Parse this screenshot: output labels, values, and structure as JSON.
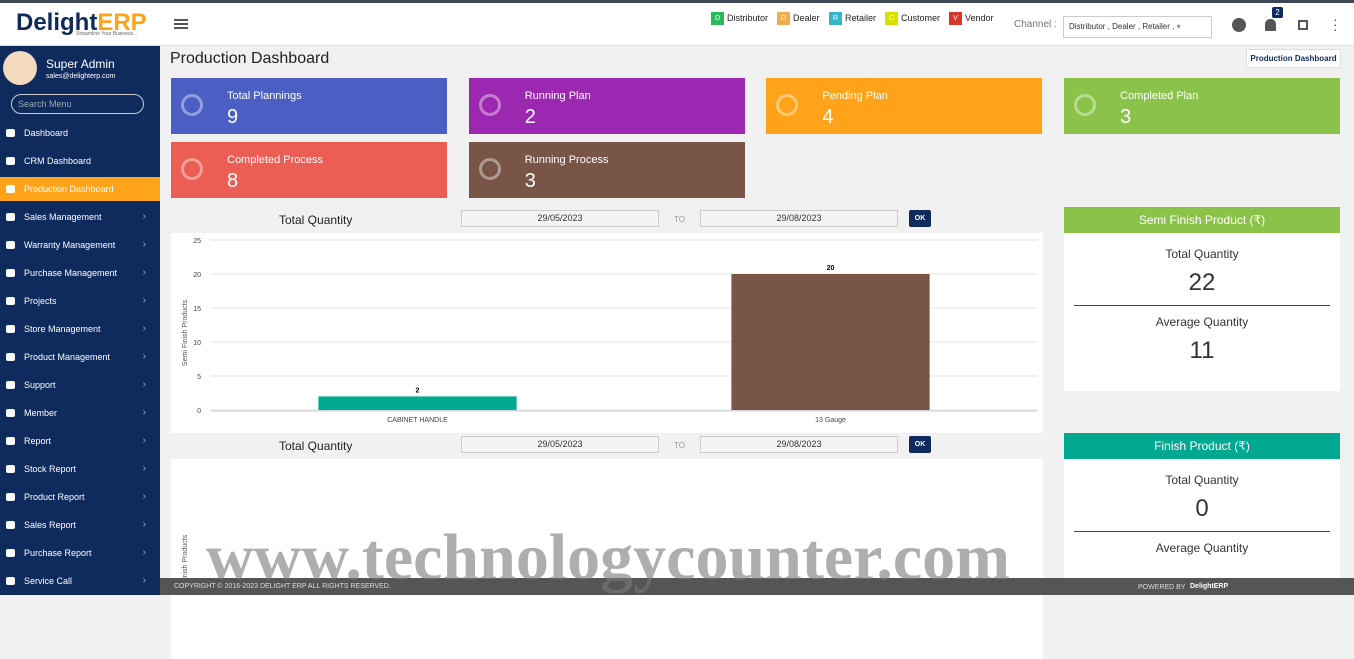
{
  "brand": {
    "name": "Delight",
    "suffix": "ERP",
    "tagline": "Streamline Your Business..."
  },
  "user": {
    "name": "Super Admin",
    "email": "sales@delighterp.com"
  },
  "search_placeholder": "Search Menu",
  "menu": [
    {
      "label": "Dashboard",
      "submenu": false
    },
    {
      "label": "CRM Dashboard",
      "submenu": false
    },
    {
      "label": "Production Dashboard",
      "submenu": false,
      "active": true
    },
    {
      "label": "Sales Management",
      "submenu": true
    },
    {
      "label": "Warranty Management",
      "submenu": true
    },
    {
      "label": "Purchase Management",
      "submenu": true
    },
    {
      "label": "Projects",
      "submenu": true
    },
    {
      "label": "Store Management",
      "submenu": true
    },
    {
      "label": "Product Management",
      "submenu": true
    },
    {
      "label": "Support",
      "submenu": true
    },
    {
      "label": "Member",
      "submenu": true
    },
    {
      "label": "Report",
      "submenu": true
    },
    {
      "label": "Stock Report",
      "submenu": true
    },
    {
      "label": "Product Report",
      "submenu": true
    },
    {
      "label": "Sales Report",
      "submenu": true
    },
    {
      "label": "Purchase Report",
      "submenu": true
    },
    {
      "label": "Service Call",
      "submenu": true
    }
  ],
  "channel_legend": [
    {
      "letter": "D",
      "label": "Distributor",
      "color": "#2eb85c"
    },
    {
      "letter": "D",
      "label": "Dealer",
      "color": "#f0ad4e"
    },
    {
      "letter": "R",
      "label": "Retailer",
      "color": "#39b3c7"
    },
    {
      "letter": "C",
      "label": "Customer",
      "color": "#d7e000"
    },
    {
      "letter": "V",
      "label": "Vendor",
      "color": "#d9362b"
    }
  ],
  "channel": {
    "label": "Channel :",
    "selected": "Distributor , Dealer , Retailer ,"
  },
  "notifications": "2",
  "page": {
    "title": "Production Dashboard",
    "breadcrumb": "Production Dashboard"
  },
  "cards": [
    {
      "label": "Total Plannings",
      "value": "9",
      "color": "#4b5ec4"
    },
    {
      "label": "Running Plan",
      "value": "2",
      "color": "#9c27b0"
    },
    {
      "label": "Pending Plan",
      "value": "4",
      "color": "#ffa31a"
    },
    {
      "label": "Completed Plan",
      "value": "3",
      "color": "#8bc34a"
    },
    {
      "label": "Completed Process",
      "value": "8",
      "color": "#ec5e53"
    },
    {
      "label": "Running Process",
      "value": "3",
      "color": "#795548"
    }
  ],
  "sections": [
    {
      "title": "Total Quantity",
      "from": "29/05/2023",
      "to_label": "TO",
      "to": "29/08/2023",
      "button": "OK",
      "chart": {
        "type": "bar",
        "y_label": "Semi Finish Products",
        "categories": [
          "CABINET HANDLE",
          "13 Gauge"
        ],
        "values": [
          2,
          20
        ],
        "colors": [
          "#00a98f",
          "#795548"
        ],
        "ylim": [
          0,
          25
        ],
        "yticks": [
          0,
          5,
          10,
          15,
          20,
          25
        ],
        "grid": true
      },
      "panel": {
        "title": "Semi Finish Product (₹)",
        "color": "#8bc34a",
        "total_label": "Total Quantity",
        "total": "22",
        "average_label": "Average Quantity",
        "average": "11"
      }
    },
    {
      "title": "Total Quantity",
      "from": "29/05/2023",
      "to_label": "TO",
      "to": "29/08/2023",
      "button": "OK",
      "chart": {
        "type": "bar",
        "y_label": "Finish Products"
      },
      "panel": {
        "title": "Finish Product (₹)",
        "color": "#00a98f",
        "total_label": "Total Quantity",
        "total": "0",
        "average_label": "Average Quantity"
      }
    }
  ],
  "footer": {
    "copyright": "COPYRIGHT © 2016-2023 DELIGHT ERP ALL RIGHTS RESERVED.",
    "powered": "POWERED BY",
    "powered_brand": "DelightERP"
  },
  "watermark": "www.technologycounter.com"
}
